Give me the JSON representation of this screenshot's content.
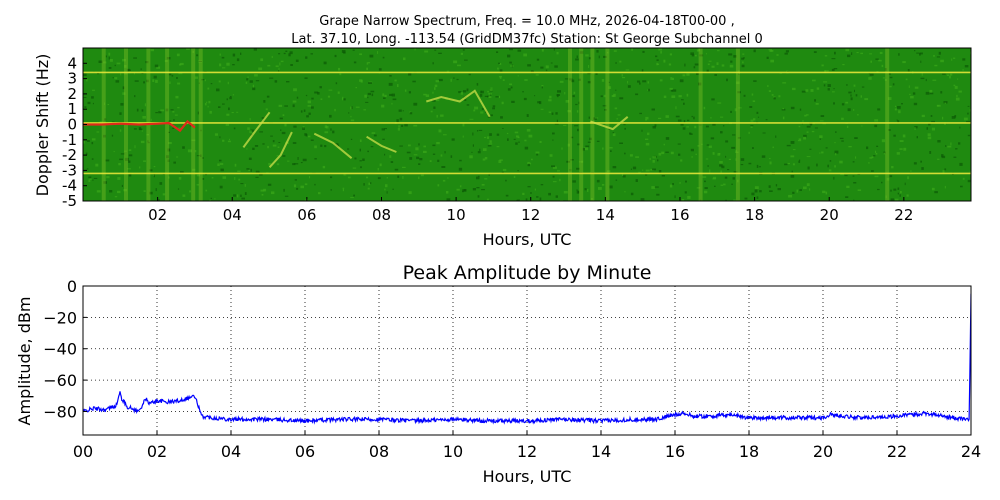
{
  "chart_data": [
    {
      "type": "heatmap",
      "title_line1": "Grape Narrow Spectrum, Freq. = 10.0 MHz, 2026-04-18T00-00 ,",
      "title_line2": "Lat.  37.10, Long. -113.54 (GridDM37fc) Station: St George Subchannel 0",
      "xlabel": "Hours, UTC",
      "ylabel": "Doppler Shift (Hz)",
      "xlim": [
        0,
        23.8
      ],
      "ylim": [
        -5,
        5
      ],
      "x_ticks": [
        "02",
        "04",
        "06",
        "08",
        "10",
        "12",
        "14",
        "16",
        "18",
        "20",
        "22"
      ],
      "x_tick_values": [
        2,
        4,
        6,
        8,
        10,
        12,
        14,
        16,
        18,
        20,
        22
      ],
      "y_ticks": [
        "4",
        "3",
        "2",
        "1",
        "0",
        "-1",
        "-2",
        "-3",
        "-4",
        "-5"
      ],
      "y_tick_values": [
        4,
        3,
        2,
        1,
        0,
        -1,
        -2,
        -3,
        -4,
        -5
      ],
      "colors": {
        "background": "#1f8a10",
        "noise_dark": "#0b5a05",
        "noise_light": "#3aa81a",
        "line": "#e6e639",
        "trace": "#e02a1a"
      },
      "horizontal_lines_hz": [
        3.4,
        0.1,
        -3.2
      ],
      "doppler_trace": {
        "x": [
          0.0,
          0.5,
          1.0,
          1.5,
          2.0,
          2.3,
          2.6,
          2.8,
          3.0
        ],
        "y": [
          0.0,
          0.0,
          0.05,
          0.0,
          0.05,
          0.1,
          -0.4,
          0.2,
          -0.2
        ]
      },
      "doppler_features": [
        {
          "x": [
            4.3,
            4.6,
            5.0
          ],
          "y": [
            -1.5,
            -0.5,
            0.8
          ]
        },
        {
          "x": [
            5.0,
            5.3,
            5.6
          ],
          "y": [
            -2.8,
            -2.0,
            -0.5
          ]
        },
        {
          "x": [
            6.2,
            6.7,
            7.2
          ],
          "y": [
            -0.6,
            -1.2,
            -2.2
          ]
        },
        {
          "x": [
            7.6,
            8.0,
            8.4
          ],
          "y": [
            -0.8,
            -1.4,
            -1.8
          ]
        },
        {
          "x": [
            9.2,
            9.6,
            10.1,
            10.5,
            10.9
          ],
          "y": [
            1.5,
            1.8,
            1.5,
            2.2,
            0.5
          ]
        },
        {
          "x": [
            13.6,
            14.2,
            14.6
          ],
          "y": [
            0.2,
            -0.3,
            0.5
          ]
        }
      ],
      "vertical_streak_hours": [
        0.5,
        1.1,
        1.7,
        2.2,
        2.9,
        3.1,
        13.0,
        13.3,
        13.6,
        14.0,
        16.5,
        17.5,
        21.5
      ]
    },
    {
      "type": "line",
      "title": "Peak Amplitude by Minute",
      "xlabel": "Hours, UTC",
      "ylabel": "Amplitude, dBm",
      "xlim": [
        0,
        24
      ],
      "ylim": [
        -95,
        0
      ],
      "x_ticks": [
        "00",
        "02",
        "04",
        "06",
        "08",
        "10",
        "12",
        "14",
        "16",
        "18",
        "20",
        "22",
        "24"
      ],
      "x_tick_values": [
        0,
        2,
        4,
        6,
        8,
        10,
        12,
        14,
        16,
        18,
        20,
        22,
        24
      ],
      "y_ticks": [
        "0",
        "−20",
        "−40",
        "−60",
        "−80"
      ],
      "y_tick_values": [
        0,
        -20,
        -40,
        -60,
        -80
      ],
      "grid": true,
      "series": [
        {
          "color": "#0000ff",
          "x": [
            0.0,
            0.3,
            0.6,
            0.9,
            1.0,
            1.05,
            1.2,
            1.5,
            1.7,
            1.8,
            2.0,
            2.3,
            2.6,
            2.9,
            3.0,
            3.1,
            3.2,
            3.5,
            4.0,
            5.0,
            6.0,
            7.0,
            8.0,
            9.0,
            10.0,
            11.0,
            12.0,
            13.0,
            14.0,
            15.0,
            15.5,
            16.0,
            16.2,
            16.5,
            17.0,
            17.5,
            18.0,
            19.0,
            20.0,
            20.2,
            21.0,
            22.0,
            22.8,
            23.0,
            23.5,
            23.95,
            24.0
          ],
          "y": [
            -80,
            -78,
            -79,
            -76,
            -68,
            -72,
            -77,
            -80,
            -72,
            -75,
            -73,
            -74,
            -73,
            -71,
            -70,
            -75,
            -83,
            -84,
            -85,
            -85,
            -86,
            -85,
            -85,
            -86,
            -85,
            -86,
            -86,
            -85,
            -86,
            -85,
            -85,
            -82,
            -81,
            -83,
            -83,
            -82,
            -84,
            -84,
            -84,
            -82,
            -84,
            -83,
            -81,
            -82,
            -84,
            -85,
            -5
          ]
        }
      ]
    }
  ]
}
